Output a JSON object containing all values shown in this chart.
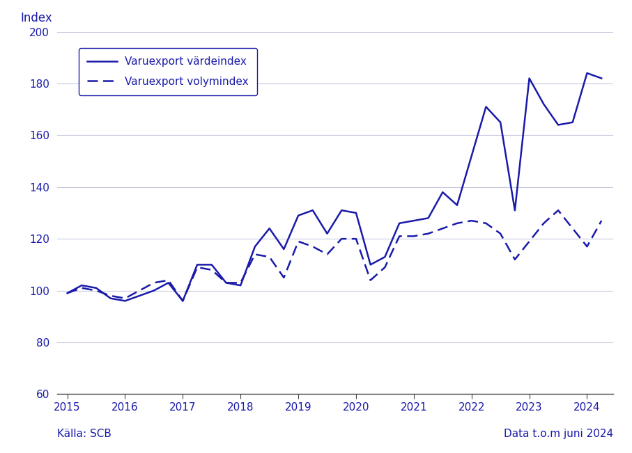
{
  "title_ylabel": "Index",
  "source_left": "Källa: SCB",
  "source_right": "Data t.o.m juni 2024",
  "legend_solid": "Varuexport värdeindex",
  "legend_dashed": "Varuexport volymindex",
  "color": "#1a1aaa",
  "ylim": [
    60,
    200
  ],
  "yticks": [
    60,
    80,
    100,
    120,
    140,
    160,
    180,
    200
  ],
  "background_color": "#ffffff",
  "grid_color": "#c8c8e0",
  "x_numeric": [
    2015.0,
    2015.25,
    2015.5,
    2015.75,
    2016.0,
    2016.25,
    2016.5,
    2016.75,
    2017.0,
    2017.25,
    2017.5,
    2017.75,
    2018.0,
    2018.25,
    2018.5,
    2018.75,
    2019.0,
    2019.25,
    2019.5,
    2019.75,
    2020.0,
    2020.25,
    2020.5,
    2020.75,
    2021.0,
    2021.25,
    2021.5,
    2021.75,
    2022.0,
    2022.25,
    2022.5,
    2022.75,
    2023.0,
    2023.25,
    2023.5,
    2023.75,
    2024.0,
    2024.25
  ],
  "vardeindex": [
    99,
    102,
    101,
    97,
    96,
    98,
    100,
    103,
    96,
    110,
    110,
    103,
    102,
    117,
    124,
    116,
    129,
    131,
    122,
    131,
    130,
    110,
    113,
    126,
    127,
    128,
    138,
    133,
    152,
    171,
    165,
    131,
    182,
    172,
    164,
    165,
    184,
    182
  ],
  "volymindex": [
    99,
    101,
    100,
    98,
    97,
    100,
    103,
    104,
    96,
    109,
    108,
    103,
    103,
    114,
    113,
    105,
    119,
    117,
    114,
    120,
    120,
    104,
    109,
    121,
    121,
    122,
    124,
    126,
    127,
    126,
    122,
    112,
    119,
    126,
    131,
    124,
    117,
    127
  ]
}
